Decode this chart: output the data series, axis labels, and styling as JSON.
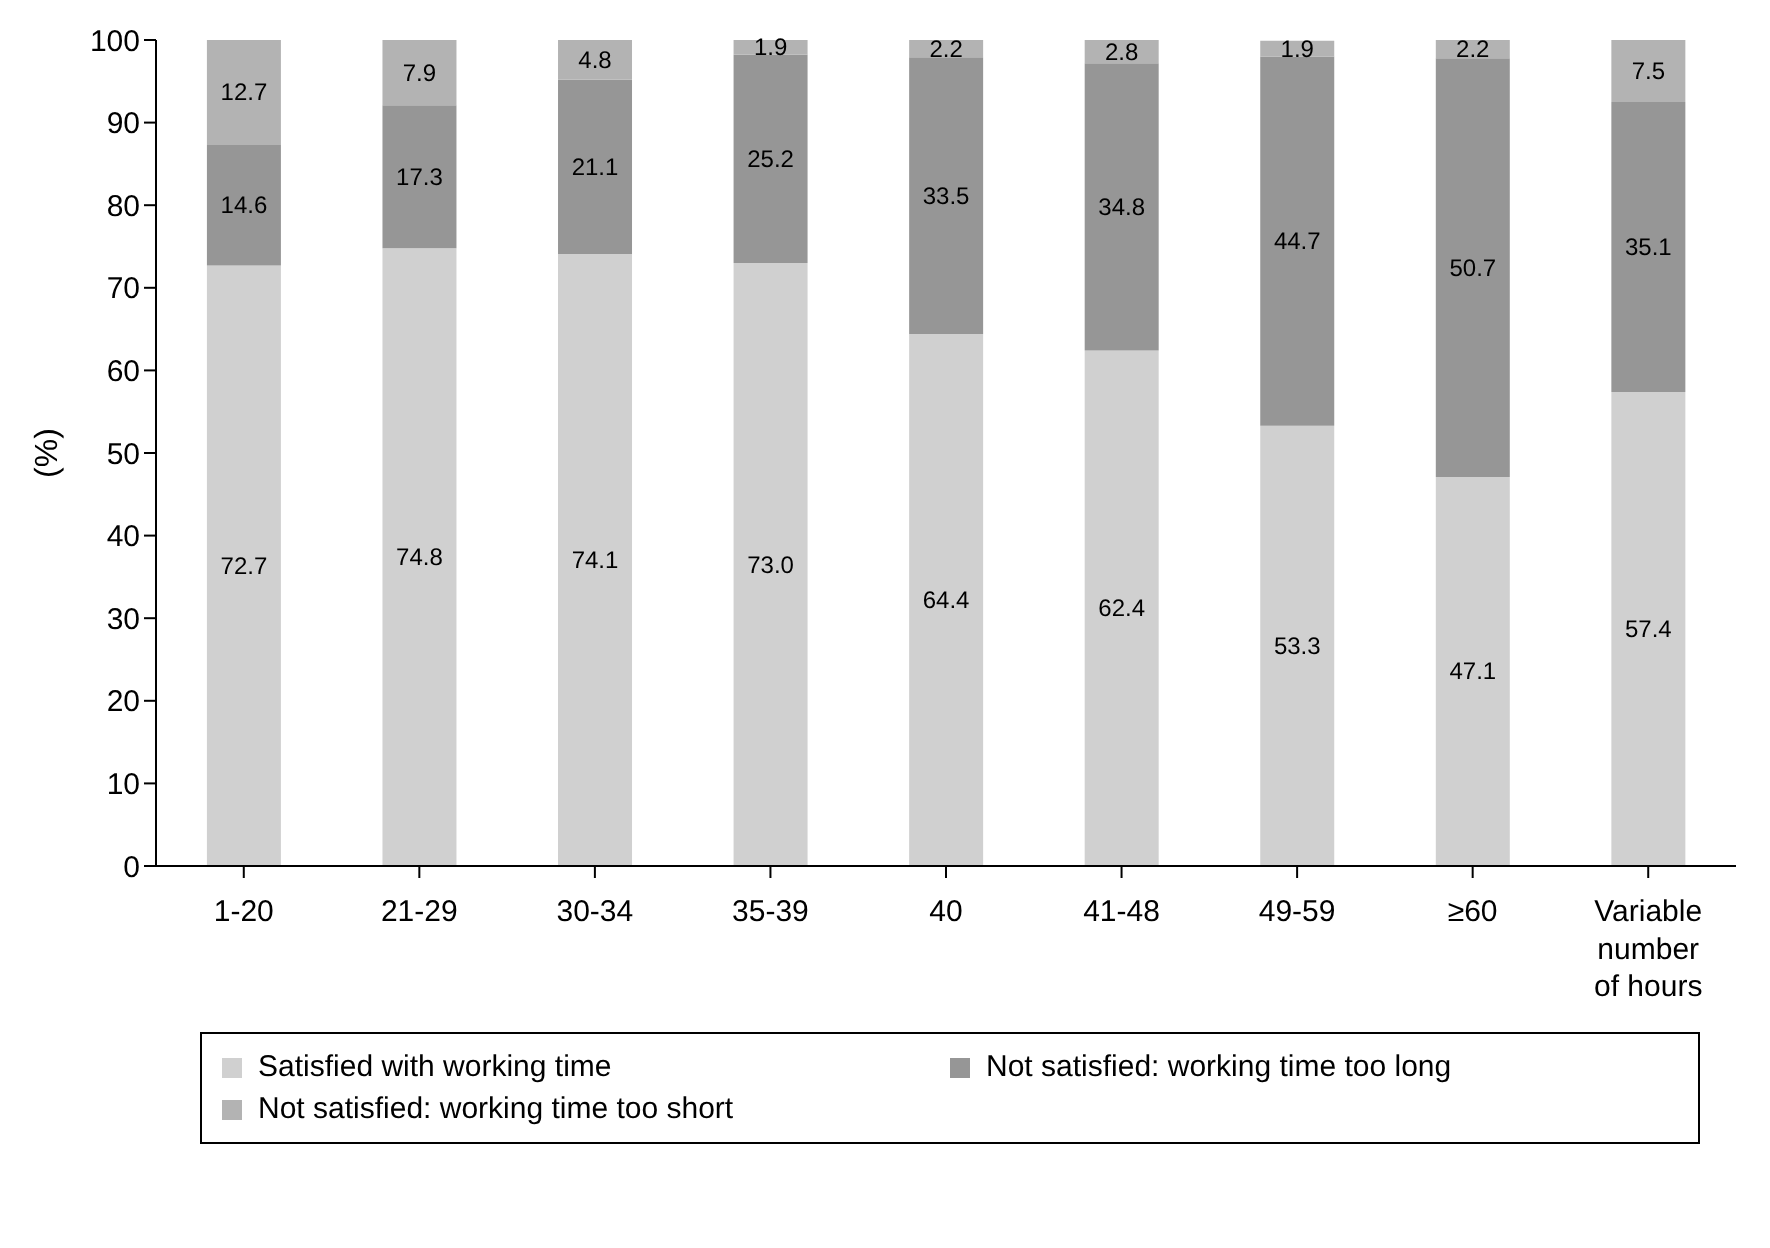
{
  "chart_data": {
    "type": "bar",
    "stacked": true,
    "ylabel": "(%)",
    "categories": [
      "1-20",
      "21-29",
      "30-34",
      "35-39",
      "40",
      "41-48",
      "49-59",
      "≥60",
      "Variable number of hours"
    ],
    "series": [
      {
        "name": "Satisfied with working time",
        "color": "#d0d0d0",
        "values": [
          72.7,
          74.8,
          74.1,
          73.0,
          64.4,
          62.4,
          53.3,
          47.1,
          57.4
        ],
        "value_labels": [
          "72.7",
          "74.8",
          "74.1",
          "73.0",
          "64.4",
          "62.4",
          "53.3",
          "47.1",
          "57.4"
        ]
      },
      {
        "name": "Not satisfied: working time too long",
        "color": "#969696",
        "values": [
          14.6,
          17.3,
          21.1,
          25.2,
          33.5,
          34.8,
          44.7,
          50.7,
          35.1
        ],
        "value_labels": [
          "14.6",
          "17.3",
          "21.1",
          "25.2",
          "33.5",
          "34.8",
          "44.7",
          "50.7",
          "35.1"
        ]
      },
      {
        "name": "Not satisfied: working time too short",
        "color": "#b3b3b3",
        "values": [
          12.7,
          7.9,
          4.8,
          1.9,
          2.2,
          2.8,
          1.9,
          2.2,
          7.5
        ],
        "value_labels": [
          "12.7",
          "7.9",
          "4.8",
          "1.9",
          "2.2",
          "2.8",
          "1.9",
          "2.2",
          "7.5"
        ]
      }
    ],
    "ylim": [
      0,
      100
    ],
    "yticks": [
      0,
      10,
      20,
      30,
      40,
      50,
      60,
      70,
      80,
      90,
      100
    ],
    "grid": false,
    "legend": "bottom"
  }
}
